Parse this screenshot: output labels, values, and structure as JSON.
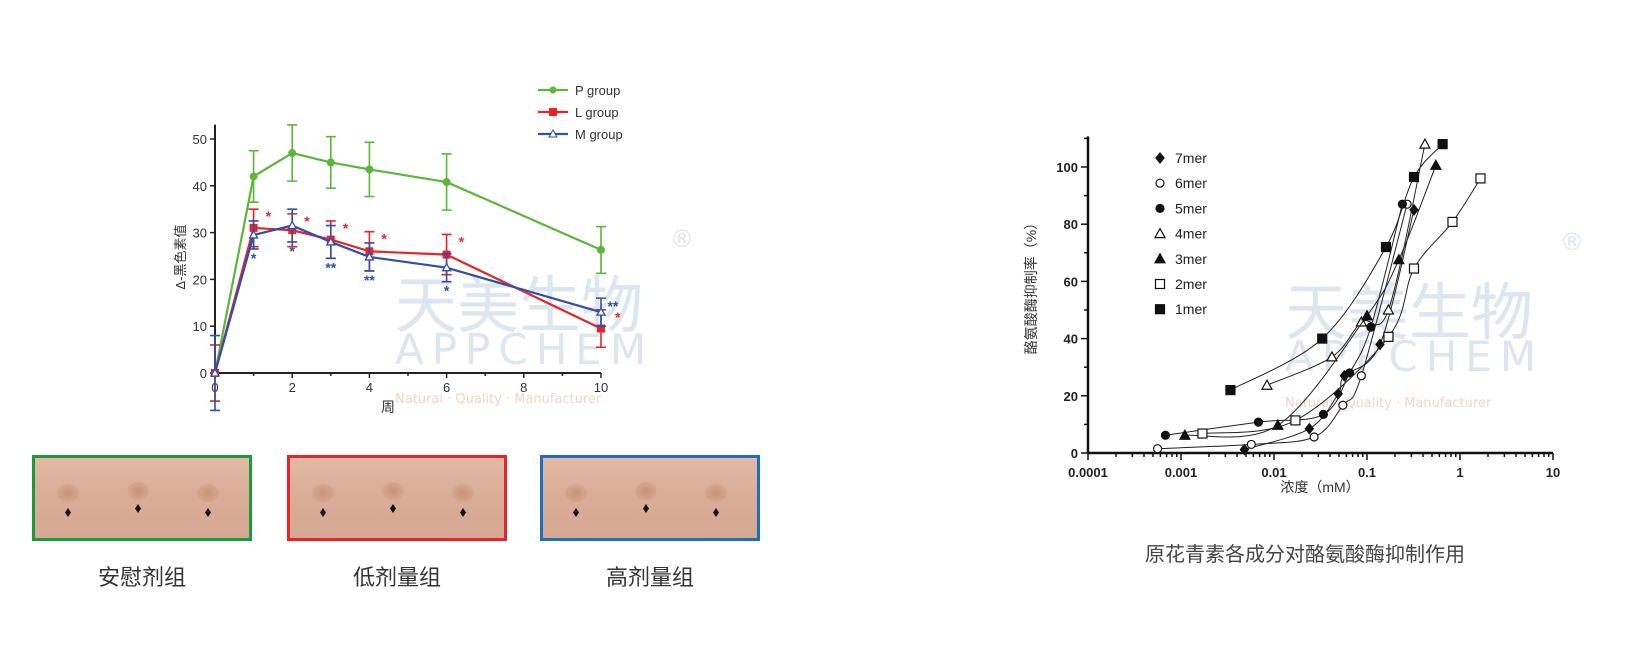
{
  "watermark": {
    "cn": "天美生物",
    "en": "APPCHEM",
    "slogan": "Natural · Quality · Manufacturer",
    "mark": "®"
  },
  "chart_data": [
    {
      "type": "line",
      "xlabel": "周",
      "ylabel": "Δ-黑色素值",
      "xlim": [
        0,
        10
      ],
      "ylim": [
        0,
        52
      ],
      "xticks": [
        0,
        2,
        4,
        6,
        8,
        10
      ],
      "yticks": [
        0,
        10,
        20,
        30,
        40,
        50
      ],
      "legend_position": "top-right",
      "grid": false,
      "x": [
        0,
        1,
        2,
        3,
        4,
        6,
        10
      ],
      "series": [
        {
          "name": "P group",
          "color": "#5db53a",
          "marker": "circle",
          "values": [
            0,
            42,
            47,
            45,
            43.5,
            40.8,
            26.3
          ],
          "errors": [
            0,
            5.5,
            6,
            5.5,
            5.8,
            6,
            5
          ]
        },
        {
          "name": "L group",
          "color": "#e8242b",
          "marker": "square",
          "values": [
            0,
            31,
            30.5,
            28.5,
            26,
            25.3,
            9.5
          ],
          "errors": [
            6,
            4,
            3.5,
            4,
            4.2,
            4.3,
            4
          ],
          "significance": [
            "",
            "*",
            "*",
            "*",
            "*",
            "*",
            "*"
          ]
        },
        {
          "name": "M group",
          "color": "#2f4fa8",
          "marker": "open-triangle",
          "values": [
            0,
            29.5,
            31.5,
            28,
            24.8,
            22.5,
            13
          ],
          "errors": [
            8,
            3,
            3.5,
            3.5,
            3,
            3,
            3
          ],
          "significance": [
            "",
            "*",
            "*",
            "**",
            "**",
            "*",
            "**"
          ]
        }
      ]
    },
    {
      "type": "scatter",
      "xlabel": "浓度（mM）",
      "ylabel": "酪氨酸酶抑制率（%）",
      "xscale": "log",
      "xlim": [
        0.0001,
        10
      ],
      "ylim": [
        0,
        110
      ],
      "xticks": [
        "0.0001",
        "0.001",
        "0.01",
        "0.1",
        "1",
        "10"
      ],
      "yticks": [
        0,
        20,
        40,
        60,
        80,
        100
      ],
      "legend_position": "top-left",
      "grid": false,
      "fit_curves": true,
      "series": [
        {
          "name": "7mer",
          "marker": "filled-diamond",
          "points": [
            [
              0.0048,
              1.2
            ],
            [
              0.024,
              8.5
            ],
            [
              0.049,
              20.7
            ],
            [
              0.057,
              27
            ],
            [
              0.138,
              38
            ],
            [
              0.32,
              85
            ]
          ]
        },
        {
          "name": "6mer",
          "marker": "open-circle",
          "points": [
            [
              0.00056,
              1.5
            ],
            [
              0.0057,
              3
            ],
            [
              0.027,
              5.6
            ],
            [
              0.055,
              16.7
            ],
            [
              0.087,
              27
            ],
            [
              0.27,
              87
            ]
          ]
        },
        {
          "name": "5mer",
          "marker": "filled-circle",
          "points": [
            [
              0.00068,
              6.2
            ],
            [
              0.0068,
              10.8
            ],
            [
              0.034,
              13.5
            ],
            [
              0.065,
              28
            ],
            [
              0.11,
              44
            ],
            [
              0.24,
              87
            ]
          ]
        },
        {
          "name": "4mer",
          "marker": "open-triangle",
          "points": [
            [
              0.0084,
              23.7
            ],
            [
              0.042,
              33.6
            ],
            [
              0.087,
              45.8
            ],
            [
              0.17,
              50
            ],
            [
              0.42,
              108
            ]
          ]
        },
        {
          "name": "3mer",
          "marker": "filled-triangle",
          "points": [
            [
              0.0011,
              6.2
            ],
            [
              0.011,
              9.7
            ],
            [
              0.1,
              48
            ],
            [
              0.22,
              67.6
            ],
            [
              0.55,
              100.6
            ]
          ]
        },
        {
          "name": "2mer",
          "marker": "open-square",
          "points": [
            [
              0.0017,
              6.8
            ],
            [
              0.017,
              11.4
            ],
            [
              0.17,
              40.6
            ],
            [
              0.32,
              64.5
            ],
            [
              0.83,
              80.8
            ],
            [
              1.66,
              96
            ]
          ]
        },
        {
          "name": "1mer",
          "marker": "filled-square",
          "points": [
            [
              0.0034,
              22
            ],
            [
              0.033,
              40
            ],
            [
              0.16,
              72
            ],
            [
              0.32,
              96.5
            ],
            [
              0.65,
              108
            ]
          ]
        }
      ]
    }
  ],
  "photos": [
    {
      "label": "安慰剂组",
      "border": "#1a9a3c"
    },
    {
      "label": "低剂量组",
      "border": "#e8242b"
    },
    {
      "label": "高剂量组",
      "border": "#1f6fc0"
    }
  ],
  "caption": "原花青素各成分对酪氨酸酶抑制作用"
}
